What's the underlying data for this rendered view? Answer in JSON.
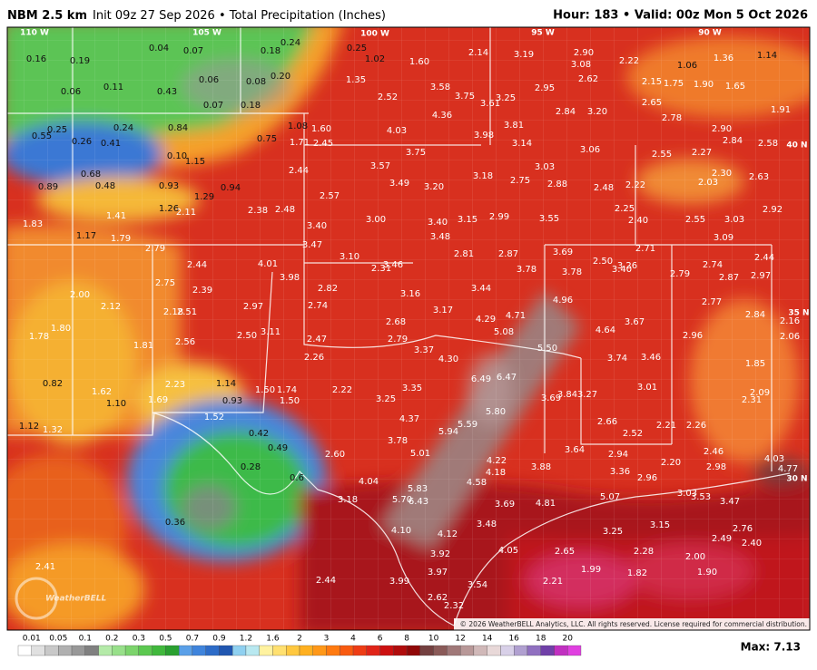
{
  "header": {
    "model": "NBM 2.5 km",
    "description": "Init 09z 27 Sep 2026 • Total Precipitation (Inches)",
    "valid": "Hour: 183 • Valid: 00z Mon 5 Oct 2026"
  },
  "map": {
    "grid_labels": [
      "110 W",
      "105 W",
      "100 W",
      "95 W",
      "90 W",
      "40 N",
      "35 N",
      "30 N"
    ],
    "labels": [
      "0.16",
      "0.19",
      "0.04",
      "0.07",
      "0.24",
      "0.18",
      "0.25",
      "1.02",
      "1.60",
      "2.14",
      "3.19",
      "2.90",
      "3.08",
      "2.22",
      "1.06",
      "1.36",
      "1.14",
      "0.06",
      "0.11",
      "0.43",
      "0.06",
      "0.08",
      "0.20",
      "1.35",
      "2.62",
      "2.15",
      "1.75",
      "1.90",
      "1.65",
      "0.07",
      "0.18",
      "2.52",
      "3.58",
      "3.75",
      "3.25",
      "3.61",
      "2.95",
      "2.65",
      "1.91",
      "0.55",
      "0.25",
      "0.24",
      "0.84",
      "0.75",
      "1.08",
      "1.60",
      "4.36",
      "2.84",
      "3.20",
      "2.78",
      "0.26",
      "0.41",
      "1.71",
      "2.45",
      "4.03",
      "3.98",
      "3.81",
      "3.14",
      "2.90",
      "2.84",
      "2.58",
      "0.10",
      "1.15",
      "3.75",
      "3.06",
      "2.55",
      "2.27",
      "0.68",
      "0.48",
      "0.89",
      "0.93",
      "0.94",
      "2.44",
      "3.57",
      "3.03",
      "2.30",
      "2.63",
      "1.29",
      "2.57",
      "3.49",
      "3.20",
      "3.18",
      "2.75",
      "2.88",
      "2.48",
      "2.22",
      "2.03",
      "1.26",
      "2.11",
      "2.38",
      "2.48",
      "2.25",
      "2.92",
      "1.41",
      "1.83",
      "3.00",
      "3.40",
      "3.15",
      "2.99",
      "3.55",
      "2.40",
      "2.55",
      "3.03",
      "1.17",
      "1.79",
      "3.40",
      "3.48",
      "3.09",
      "2.79",
      "3.47",
      "3.10",
      "2.81",
      "2.87",
      "3.69",
      "2.71",
      "2.44",
      "2.44",
      "4.01",
      "2.50",
      "3.26",
      "3.40",
      "2.74",
      "2.31",
      "3.46",
      "3.78",
      "3.78",
      "2.79",
      "2.87",
      "2.97",
      "3.98",
      "2.75",
      "2.82",
      "2.39",
      "3.16",
      "3.44",
      "4.96",
      "2.77",
      "2.00",
      "2.12",
      "2.74",
      "3.17",
      "2.18",
      "2.51",
      "2.97",
      "4.29",
      "4.71",
      "3.67",
      "2.84",
      "2.16",
      "1.80",
      "2.68",
      "5.08",
      "4.64",
      "1.78",
      "3.11",
      "2.50",
      "2.47",
      "2.79",
      "2.96",
      "2.06",
      "1.81",
      "2.56",
      "3.37",
      "5.50",
      "4.30",
      "3.74",
      "3.46",
      "2.26",
      "1.85",
      "6.49",
      "6.47",
      "0.82",
      "1.14",
      "3.35",
      "1.50",
      "1.74",
      "2.22",
      "3.01",
      "1.62",
      "2.23",
      "2.09",
      "5.80",
      "3.69",
      "3.84",
      "3.27",
      "0.93",
      "1.10",
      "1.69",
      "1.50",
      "3.25",
      "2.31",
      "1.52",
      "4.37",
      "5.59",
      "5.94",
      "2.66",
      "2.52",
      "2.21",
      "2.26",
      "1.12",
      "1.32",
      "0.42",
      "3.78",
      "0.49",
      "5.01",
      "3.64",
      "2.94",
      "2.46",
      "4.03",
      "2.60",
      "4.22",
      "0.28",
      "2.20",
      "3.88",
      "4.18",
      "3.36",
      "2.98",
      "4.77",
      "0.6",
      "4.04",
      "4.58",
      "2.96",
      "5.83",
      "3.03",
      "3.53",
      "3.47",
      "3.18",
      "5.70",
      "6.43",
      "3.69",
      "4.81",
      "5.07",
      "0.36",
      "3.48",
      "3.15",
      "4.10",
      "4.12",
      "3.25",
      "2.76",
      "2.49",
      "2.40",
      "4.05",
      "2.65",
      "2.28",
      "3.92",
      "2.00",
      "2.41",
      "3.97",
      "1.99",
      "1.82",
      "1.90",
      "2.44",
      "3.99",
      "3.54",
      "2.21",
      "2.62",
      "2.32"
    ],
    "watermark": "WeatherBELL",
    "copyright": "© 2026 WeatherBELL Analytics, LLC. All rights reserved. License required for commercial distribution."
  },
  "colorbar": {
    "labels": [
      "0.01",
      "0.05",
      "0.1",
      "0.2",
      "0.3",
      "0.5",
      "0.7",
      "0.9",
      "1.2",
      "1.6",
      "2",
      "3",
      "4",
      "6",
      "8",
      "10",
      "12",
      "14",
      "16",
      "18",
      "20"
    ],
    "max": "Max: 7.13"
  }
}
